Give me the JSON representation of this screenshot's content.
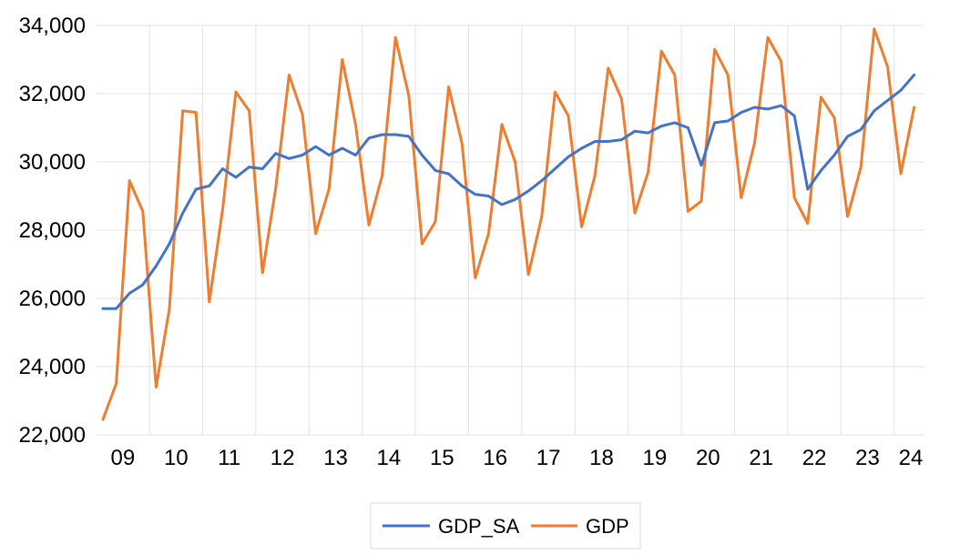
{
  "chart_data": {
    "type": "line",
    "title": "",
    "xlabel": "",
    "ylabel": "",
    "x_unit": "quarter",
    "x_start": "2009Q1",
    "ylim": [
      22000,
      34000
    ],
    "yticks": [
      22000,
      24000,
      26000,
      28000,
      30000,
      32000,
      34000
    ],
    "ytick_labels": [
      "22,000",
      "24,000",
      "26,000",
      "28,000",
      "30,000",
      "32,000",
      "34,000"
    ],
    "xtick_labels": [
      "09",
      "10",
      "11",
      "12",
      "13",
      "14",
      "15",
      "16",
      "17",
      "18",
      "19",
      "20",
      "21",
      "22",
      "23",
      "24"
    ],
    "grid": {
      "horizontal": true,
      "vertical": true
    },
    "legend": {
      "position": "bottom",
      "entries": [
        "GDP_SA",
        "GDP"
      ]
    },
    "series": [
      {
        "name": "GDP_SA",
        "color": "#4472C4",
        "values": [
          25700,
          25700,
          26150,
          26400,
          26950,
          27600,
          28500,
          29200,
          29300,
          29800,
          29550,
          29850,
          29800,
          30250,
          30100,
          30200,
          30450,
          30200,
          30400,
          30200,
          30700,
          30800,
          30800,
          30750,
          30200,
          29750,
          29650,
          29300,
          29050,
          29000,
          28750,
          28900,
          29150,
          29450,
          29800,
          30150,
          30400,
          30600,
          30600,
          30650,
          30900,
          30850,
          31050,
          31150,
          31000,
          29900,
          31150,
          31200,
          31450,
          31600,
          31550,
          31650,
          31350,
          29200,
          29750,
          30200,
          30750,
          30950,
          31500,
          31800,
          32100,
          32550
        ]
      },
      {
        "name": "GDP",
        "color": "#ED7D31",
        "values": [
          22450,
          23500,
          29450,
          28550,
          23400,
          25700,
          31500,
          31450,
          25900,
          28600,
          32050,
          31500,
          26750,
          29250,
          32550,
          31400,
          27900,
          29200,
          33000,
          31100,
          28150,
          29600,
          33650,
          31950,
          27600,
          28250,
          32200,
          30550,
          26600,
          27900,
          31100,
          30000,
          26700,
          28400,
          32050,
          31350,
          28100,
          29600,
          32750,
          31850,
          28500,
          29700,
          33250,
          32550,
          28550,
          28850,
          33300,
          32550,
          28950,
          30550,
          33650,
          32950,
          28950,
          28200,
          31900,
          31300,
          28400,
          29850,
          33900,
          32800,
          29650,
          31600
        ]
      }
    ]
  }
}
